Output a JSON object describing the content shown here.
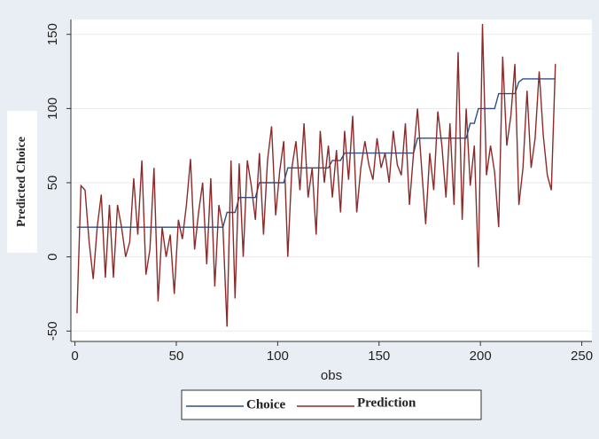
{
  "chart_data": {
    "type": "line",
    "x_label": "obs",
    "y_label": "Predicted Choice",
    "x": [
      1,
      3,
      5,
      7,
      9,
      11,
      13,
      15,
      17,
      19,
      21,
      23,
      25,
      27,
      29,
      31,
      33,
      35,
      37,
      39,
      41,
      43,
      45,
      47,
      49,
      51,
      53,
      55,
      57,
      59,
      61,
      63,
      65,
      67,
      69,
      71,
      73,
      75,
      77,
      79,
      81,
      83,
      85,
      87,
      89,
      91,
      93,
      95,
      97,
      99,
      101,
      103,
      105,
      107,
      109,
      111,
      113,
      115,
      117,
      119,
      121,
      123,
      125,
      127,
      129,
      131,
      133,
      135,
      137,
      139,
      141,
      143,
      145,
      147,
      149,
      151,
      153,
      155,
      157,
      159,
      161,
      163,
      165,
      167,
      169,
      171,
      173,
      175,
      177,
      179,
      181,
      183,
      185,
      187,
      189,
      191,
      193,
      195,
      197,
      199,
      201,
      203,
      205,
      207,
      209,
      211,
      213,
      215,
      217,
      219,
      221,
      223,
      225,
      227,
      229,
      231,
      233,
      235,
      237
    ],
    "series": [
      {
        "name": "Choice",
        "color": "#2b4f86",
        "values": [
          20,
          20,
          20,
          20,
          20,
          20,
          20,
          20,
          20,
          20,
          20,
          20,
          20,
          20,
          20,
          20,
          20,
          20,
          20,
          20,
          20,
          20,
          20,
          20,
          20,
          20,
          20,
          20,
          20,
          20,
          20,
          20,
          20,
          20,
          20,
          20,
          20,
          30,
          30,
          30,
          40,
          40,
          40,
          40,
          40,
          50,
          50,
          50,
          50,
          50,
          50,
          50,
          60,
          60,
          60,
          60,
          60,
          60,
          60,
          60,
          60,
          60,
          60,
          65,
          65,
          65,
          70,
          70,
          70,
          70,
          70,
          70,
          70,
          70,
          70,
          70,
          70,
          70,
          70,
          70,
          70,
          70,
          70,
          70,
          80,
          80,
          80,
          80,
          80,
          80,
          80,
          80,
          80,
          80,
          80,
          80,
          80,
          90,
          90,
          100,
          100,
          100,
          100,
          100,
          110,
          110,
          110,
          110,
          110,
          118,
          120,
          120,
          120,
          120,
          120,
          120,
          120,
          120,
          120
        ]
      },
      {
        "name": "Prediction",
        "color": "#8c2a2a",
        "values": [
          -38,
          48,
          45,
          10,
          -15,
          20,
          42,
          -14,
          35,
          -14,
          35,
          20,
          0,
          10,
          53,
          15,
          65,
          -12,
          5,
          60,
          -30,
          20,
          0,
          15,
          -25,
          25,
          12,
          35,
          66,
          5,
          30,
          50,
          -5,
          53,
          -20,
          35,
          20,
          -47,
          65,
          -28,
          63,
          0,
          65,
          48,
          25,
          70,
          15,
          65,
          88,
          28,
          58,
          78,
          0,
          60,
          78,
          45,
          90,
          40,
          60,
          15,
          85,
          50,
          75,
          40,
          72,
          30,
          85,
          52,
          95,
          30,
          60,
          78,
          62,
          52,
          80,
          60,
          70,
          50,
          85,
          62,
          55,
          90,
          35,
          70,
          100,
          60,
          22,
          70,
          45,
          98,
          75,
          40,
          90,
          35,
          138,
          25,
          100,
          48,
          75,
          -7,
          157,
          55,
          75,
          57,
          20,
          135,
          75,
          95,
          130,
          35,
          60,
          112,
          60,
          80,
          125,
          82,
          55,
          45,
          130
        ]
      }
    ],
    "xlim": [
      -2,
      255
    ],
    "xticks": [
      0,
      50,
      100,
      150,
      200,
      250
    ],
    "ylim": [
      -57,
      160
    ],
    "yticks": [
      -50,
      0,
      50,
      100,
      150
    ],
    "grid": true
  }
}
